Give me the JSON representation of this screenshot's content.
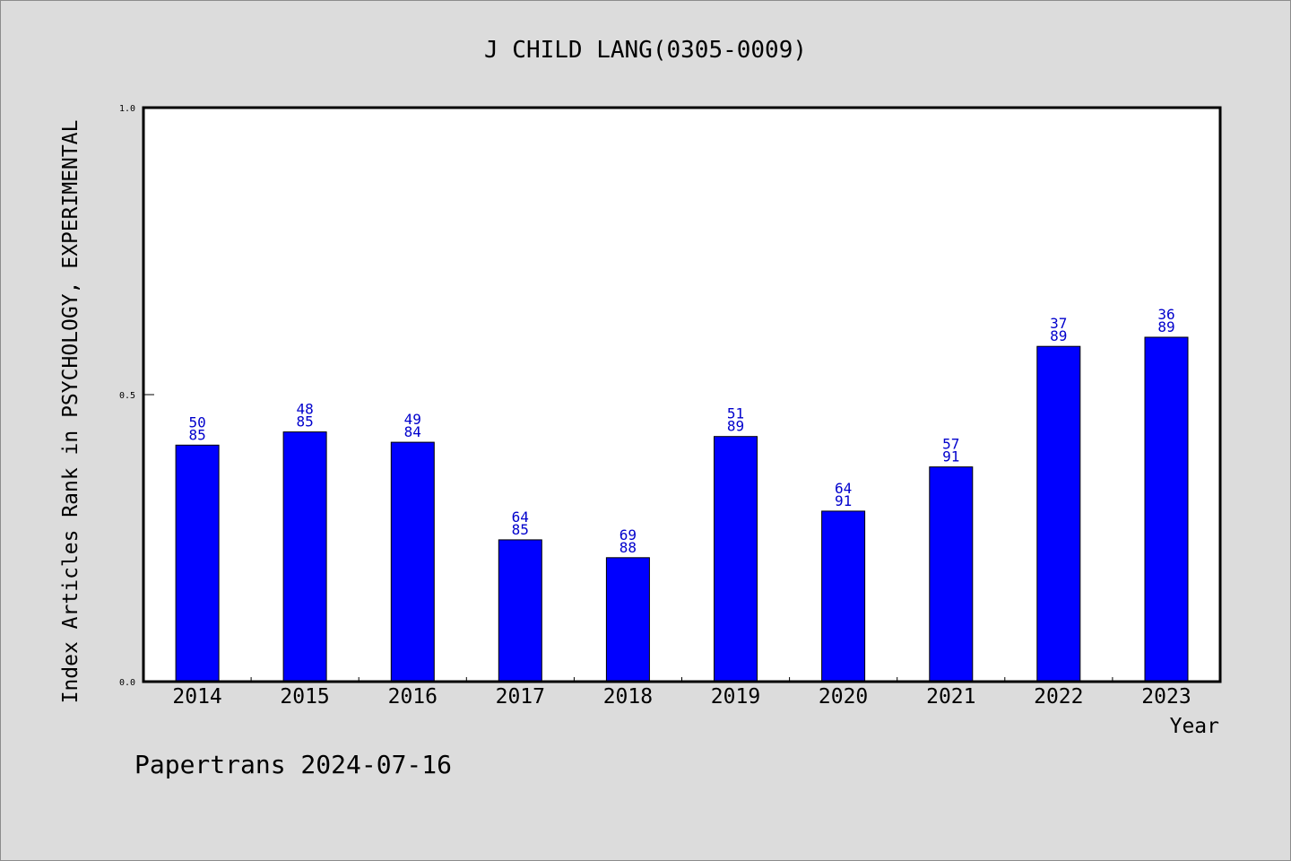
{
  "chart_data": {
    "type": "bar",
    "title": "J CHILD LANG(0305-0009)",
    "xlabel": "Year",
    "ylabel": "Index Articles Rank in PSYCHOLOGY, EXPERIMENTAL",
    "ylim": [
      0.0,
      1.0
    ],
    "yticks": [
      "0.0",
      "0.5",
      "1.0"
    ],
    "categories": [
      "2014",
      "2015",
      "2016",
      "2017",
      "2018",
      "2019",
      "2020",
      "2021",
      "2022",
      "2023"
    ],
    "values": [
      0.412,
      0.435,
      0.417,
      0.247,
      0.216,
      0.427,
      0.297,
      0.374,
      0.584,
      0.6
    ],
    "rank_labels": [
      {
        "rank": "50",
        "total": "85"
      },
      {
        "rank": "48",
        "total": "85"
      },
      {
        "rank": "49",
        "total": "84"
      },
      {
        "rank": "64",
        "total": "85"
      },
      {
        "rank": "69",
        "total": "88"
      },
      {
        "rank": "51",
        "total": "89"
      },
      {
        "rank": "64",
        "total": "91"
      },
      {
        "rank": "57",
        "total": "91"
      },
      {
        "rank": "37",
        "total": "89"
      },
      {
        "rank": "36",
        "total": "89"
      }
    ],
    "grid": false,
    "colors": {
      "bar": "#0000ff",
      "label": "#0000cc",
      "background": "#dcdcdc",
      "plot_background": "#ffffff"
    }
  },
  "footer": {
    "credit": "Papertrans 2024-07-16"
  }
}
